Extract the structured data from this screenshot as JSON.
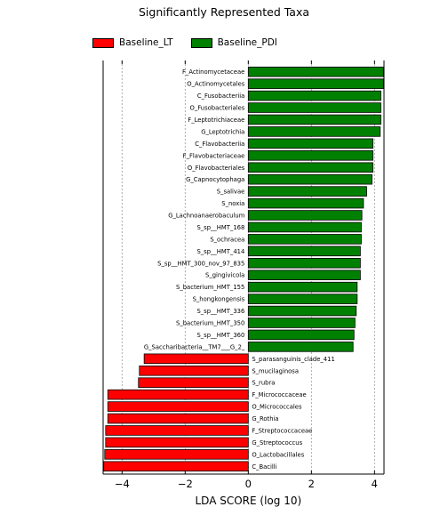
{
  "chart_data": {
    "type": "bar",
    "orientation": "horizontal",
    "title": "Significantly Represented Taxa",
    "xlabel": "LDA SCORE (log 10)",
    "ylabel": "",
    "xlim": [
      -4.6,
      4.3
    ],
    "xticks": [
      "−4",
      "−2",
      "0",
      "2",
      "4"
    ],
    "grid": "vertical dashed",
    "legend_position": "top-left",
    "legend": [
      {
        "name": "Baseline_LT",
        "color": "#ff0000"
      },
      {
        "name": "Baseline_PDI",
        "color": "#008000"
      }
    ],
    "series": [
      {
        "name": "Baseline_PDI",
        "color": "#008000",
        "bars": [
          {
            "label": "F_Actinomycetaceae",
            "value": 4.28
          },
          {
            "label": "O_Actinomycetales",
            "value": 4.28
          },
          {
            "label": "C_Fusobacteriia",
            "value": 4.2
          },
          {
            "label": "O_Fusobacteriales",
            "value": 4.2
          },
          {
            "label": "F_Leptotrichiaceae",
            "value": 4.2
          },
          {
            "label": "G_Leptotrichia",
            "value": 4.18
          },
          {
            "label": "C_Flavobacteriia",
            "value": 3.95
          },
          {
            "label": "F_Flavobacteriaceae",
            "value": 3.95
          },
          {
            "label": "O_Flavobacteriales",
            "value": 3.95
          },
          {
            "label": "G_Capnocytophaga",
            "value": 3.92
          },
          {
            "label": "S_salivae",
            "value": 3.75
          },
          {
            "label": "S_noxia",
            "value": 3.65
          },
          {
            "label": "G_Lachnoanaerobaculum",
            "value": 3.6
          },
          {
            "label": "S_sp__HMT_168",
            "value": 3.58
          },
          {
            "label": "S_ochracea",
            "value": 3.58
          },
          {
            "label": "S_sp__HMT_414",
            "value": 3.55
          },
          {
            "label": "S_sp__HMT_300_nov_97_835",
            "value": 3.55
          },
          {
            "label": "S_gingivicola",
            "value": 3.55
          },
          {
            "label": "S_bacterium_HMT_155",
            "value": 3.45
          },
          {
            "label": "S_hongkongensis",
            "value": 3.45
          },
          {
            "label": "S_sp__HMT_336",
            "value": 3.42
          },
          {
            "label": "S_bacterium_HMT_350",
            "value": 3.38
          },
          {
            "label": "S_sp__HMT_360",
            "value": 3.35
          },
          {
            "label": "G_Saccharibacteria__TM7___G_2_",
            "value": 3.32
          }
        ]
      },
      {
        "name": "Baseline_LT",
        "color": "#ff0000",
        "bars": [
          {
            "label": "S_parasanguinis_clade_411",
            "value": -3.3
          },
          {
            "label": "S_mucilaginosa",
            "value": -3.45
          },
          {
            "label": "S_rubra",
            "value": -3.48
          },
          {
            "label": "F_Micrococcaceae",
            "value": -4.45
          },
          {
            "label": "O_Micrococcales",
            "value": -4.45
          },
          {
            "label": "G_Rothia",
            "value": -4.45
          },
          {
            "label": "F_Streptococcaceae",
            "value": -4.52
          },
          {
            "label": "G_Streptococcus",
            "value": -4.52
          },
          {
            "label": "O_Lactobacillales",
            "value": -4.55
          },
          {
            "label": "C_Bacilli",
            "value": -4.58
          }
        ]
      }
    ]
  }
}
